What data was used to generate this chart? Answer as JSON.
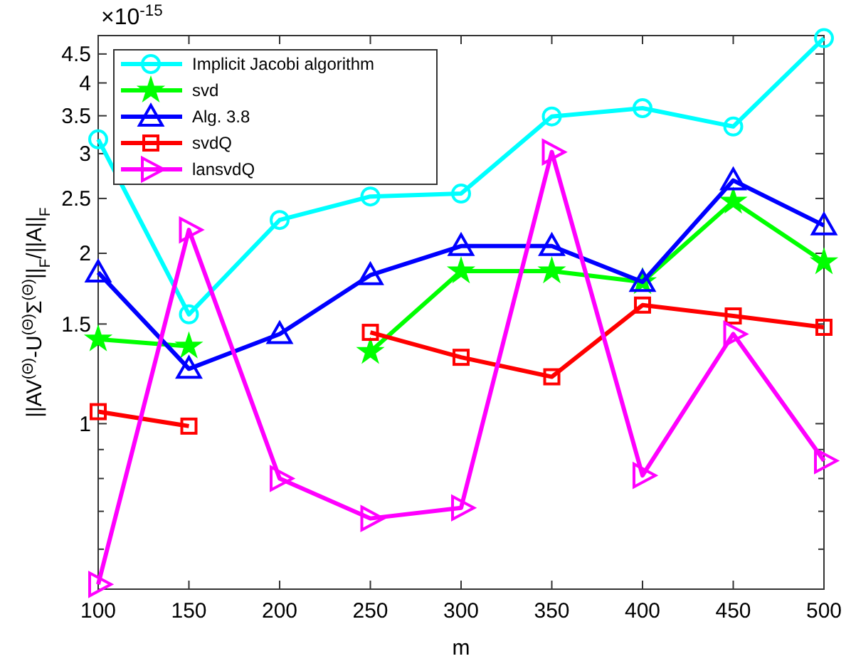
{
  "chart_data": {
    "type": "line",
    "xlabel": "m",
    "ylabel": "||AV$^{(Θ)}$-U$^{(Θ)}$Σ$^{(Θ)}$||$_{F}$/||A||$_{F}$",
    "annotations": [
      "×10$^{-15}$"
    ],
    "x": [
      100,
      150,
      200,
      250,
      300,
      350,
      400,
      450,
      500
    ],
    "xlim": [
      100,
      500
    ],
    "xticks": [
      100,
      150,
      200,
      250,
      300,
      350,
      400,
      450,
      500
    ],
    "ylim": [
      0.51,
      4.85
    ],
    "yticks": [
      {
        "value": 0.6,
        "label": null
      },
      {
        "value": 0.7,
        "label": null
      },
      {
        "value": 0.8,
        "label": null
      },
      {
        "value": 0.9,
        "label": null
      },
      1,
      1.5,
      2,
      2.5,
      3,
      3.5,
      4,
      4.5
    ],
    "log": "y",
    "grid": false,
    "legend": "top left",
    "line_style": "solid",
    "series": [
      {
        "name": "Implicit Jacobi algorithm",
        "color": "#00ffff",
        "marker": "circle",
        "values": [
          3.18,
          1.56,
          2.29,
          2.52,
          2.55,
          3.49,
          3.61,
          3.35,
          4.8
        ]
      },
      {
        "name": "svd",
        "color": "#00ff00",
        "marker": "star",
        "values": [
          1.41,
          1.37,
          null,
          1.34,
          1.86,
          1.86,
          1.78,
          2.47,
          1.93
        ]
      },
      {
        "name": "Alg. 3.8",
        "color": "#0000ff",
        "marker": "triangle",
        "values": [
          1.85,
          1.25,
          1.44,
          1.83,
          2.06,
          2.06,
          1.78,
          2.69,
          2.24
        ]
      },
      {
        "name": "svdQ",
        "color": "#ff0000",
        "marker": "square",
        "values": [
          1.05,
          0.99,
          null,
          1.45,
          1.31,
          1.21,
          1.62,
          1.55,
          1.48
        ]
      },
      {
        "name": "lansvdQ",
        "color": "#ff00ff",
        "marker": "triangle-right",
        "values": [
          0.52,
          2.2,
          0.8,
          0.68,
          0.71,
          3.02,
          0.81,
          1.44,
          0.86
        ]
      }
    ]
  }
}
